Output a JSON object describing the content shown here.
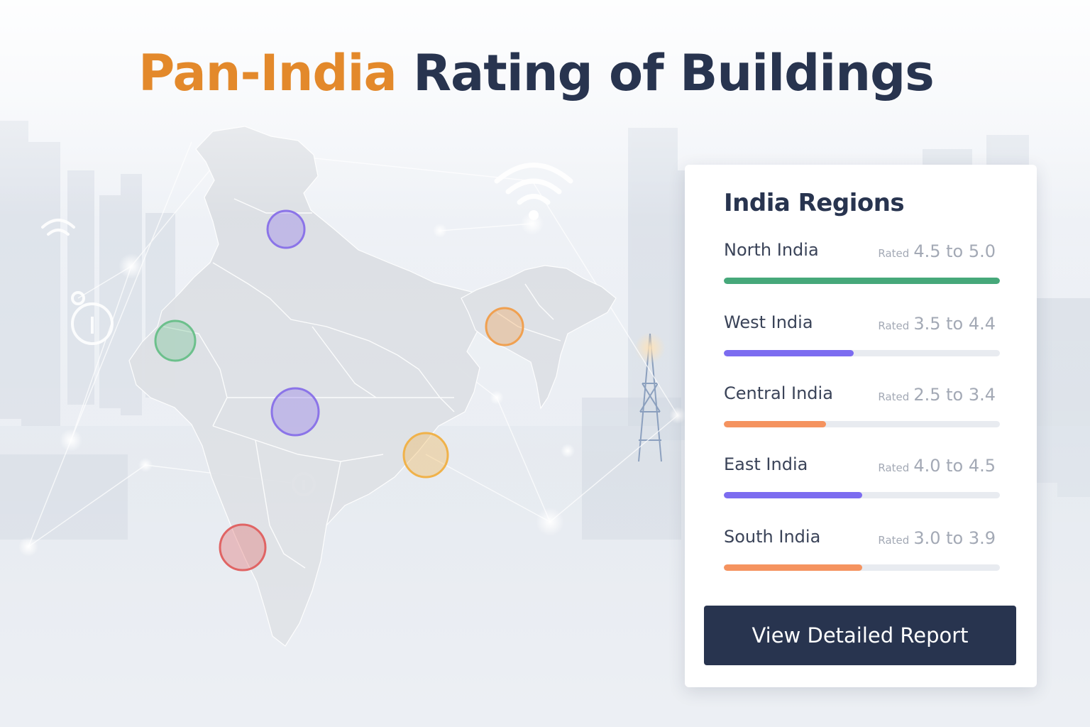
{
  "header": {
    "title_accent": "Pan-India",
    "title_rest": "Rating of Buildings"
  },
  "map": {
    "region_markers": [
      {
        "name": "north-marker",
        "color": "#8b74e8"
      },
      {
        "name": "west-marker",
        "color": "#6cc08c"
      },
      {
        "name": "central-marker",
        "color": "#8b74e8"
      },
      {
        "name": "east-marker",
        "color": "#f0b24a"
      },
      {
        "name": "northeast-marker",
        "color": "#f0a050"
      },
      {
        "name": "south-marker",
        "color": "#e06464"
      }
    ]
  },
  "panel": {
    "title": "India Regions",
    "rated_label": "Rated",
    "regions": [
      {
        "name": "North India",
        "range": "4.5 to 5.0",
        "level": 1.0,
        "color": "#46a87a"
      },
      {
        "name": "West India",
        "range": "3.5 to 4.4",
        "level": 0.47,
        "color": "#7c6cf0"
      },
      {
        "name": "Central India",
        "range": "2.5 to 3.4",
        "level": 0.37,
        "color": "#f5935f"
      },
      {
        "name": "East India",
        "range": "4.0 to 4.5",
        "level": 0.5,
        "color": "#7c6cf0"
      },
      {
        "name": "South India",
        "range": "3.0 to 3.9",
        "level": 0.5,
        "color": "#f5935f"
      }
    ],
    "button_label": "View Detailed Report"
  }
}
